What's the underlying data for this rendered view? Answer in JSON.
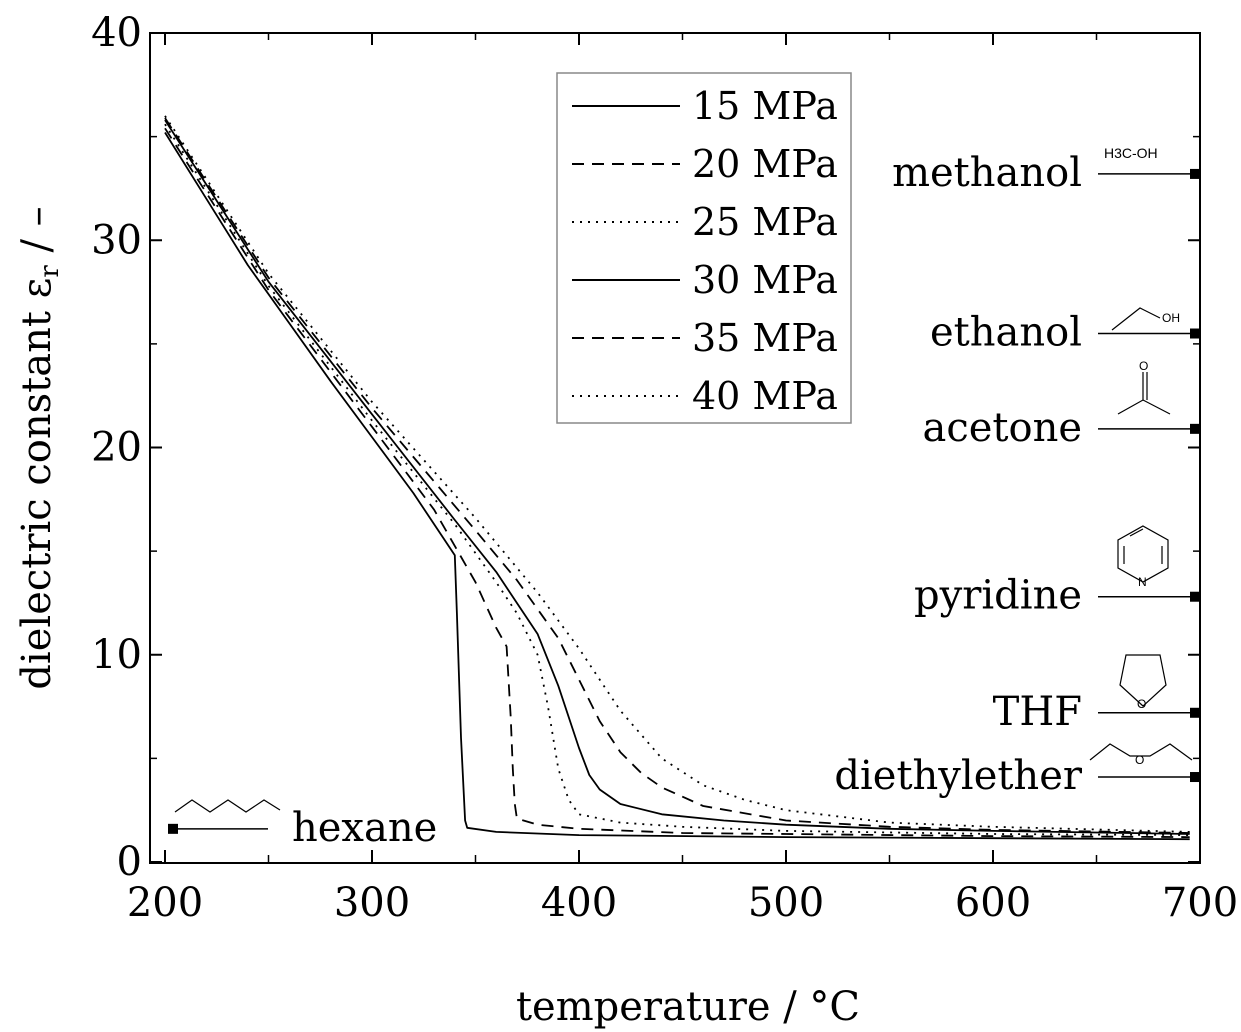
{
  "chart_data": {
    "type": "line",
    "xlabel": "temperature / °C",
    "ylabel": "dielectric constant ε",
    "ylabel_sub": "r",
    "ylabel_unit": " / –",
    "xlim": [
      200,
      700
    ],
    "ylim": [
      0,
      40
    ],
    "x_ticks": [
      "200",
      "300",
      "400",
      "500",
      "600",
      "700"
    ],
    "y_ticks": [
      "0",
      "10",
      "20",
      "30",
      "40"
    ],
    "legend_position": "top-center",
    "series": [
      {
        "name": "15 MPa",
        "style": "solid",
        "x": [
          200,
          220,
          240,
          260,
          280,
          300,
          320,
          340,
          341,
          343,
          345,
          346,
          360,
          400,
          500,
          600,
          695
        ],
        "y": [
          35.2,
          32.0,
          28.8,
          26.0,
          23.2,
          20.5,
          17.8,
          14.8,
          12.0,
          6.0,
          2.0,
          1.65,
          1.45,
          1.3,
          1.2,
          1.15,
          1.1
        ]
      },
      {
        "name": "20 MPa",
        "style": "dashed",
        "x": [
          200,
          250,
          300,
          330,
          350,
          360,
          365,
          367,
          368,
          369,
          370,
          380,
          400,
          450,
          500,
          600,
          695
        ],
        "y": [
          35.4,
          27.6,
          21.0,
          17.0,
          13.5,
          11.3,
          10.4,
          7.0,
          4.5,
          2.8,
          2.1,
          1.8,
          1.6,
          1.4,
          1.35,
          1.25,
          1.2
        ]
      },
      {
        "name": "25 MPa",
        "style": "dotted",
        "x": [
          200,
          250,
          300,
          340,
          360,
          370,
          380,
          385,
          390,
          395,
          400,
          420,
          450,
          500,
          600,
          695
        ],
        "y": [
          35.6,
          27.8,
          21.3,
          16.3,
          13.5,
          12.0,
          10.0,
          7.5,
          4.5,
          3.0,
          2.3,
          1.9,
          1.7,
          1.5,
          1.35,
          1.3
        ]
      },
      {
        "name": "30 MPa",
        "style": "solid",
        "x": [
          200,
          250,
          300,
          340,
          360,
          380,
          390,
          400,
          405,
          410,
          420,
          440,
          470,
          500,
          550,
          600,
          695
        ],
        "y": [
          35.8,
          28.0,
          21.6,
          16.5,
          14.0,
          11.0,
          8.5,
          5.5,
          4.2,
          3.5,
          2.8,
          2.3,
          2.0,
          1.8,
          1.6,
          1.5,
          1.35
        ]
      },
      {
        "name": "35 MPa",
        "style": "dashed",
        "x": [
          200,
          250,
          300,
          350,
          370,
          390,
          400,
          410,
          420,
          430,
          440,
          460,
          500,
          550,
          600,
          695
        ],
        "y": [
          35.9,
          28.2,
          21.9,
          16.0,
          13.6,
          10.8,
          8.8,
          6.8,
          5.3,
          4.3,
          3.6,
          2.7,
          2.0,
          1.7,
          1.55,
          1.4
        ]
      },
      {
        "name": "40 MPa",
        "style": "dotted",
        "x": [
          200,
          250,
          300,
          350,
          380,
          400,
          420,
          440,
          460,
          480,
          500,
          550,
          600,
          695
        ],
        "y": [
          36.0,
          28.4,
          22.2,
          16.6,
          13.0,
          10.3,
          7.3,
          5.0,
          3.7,
          3.0,
          2.5,
          1.9,
          1.7,
          1.45
        ]
      }
    ],
    "reference_solvents": [
      {
        "label": "methanol",
        "value": 33.2,
        "molecule": "H3C-OH"
      },
      {
        "label": "ethanol",
        "value": 25.5
      },
      {
        "label": "acetone",
        "value": 20.9
      },
      {
        "label": "pyridine",
        "value": 12.8
      },
      {
        "label": "THF",
        "value": 7.2
      },
      {
        "label": "diethylether",
        "value": 4.1
      },
      {
        "label": "hexane",
        "value": 1.6
      }
    ]
  }
}
